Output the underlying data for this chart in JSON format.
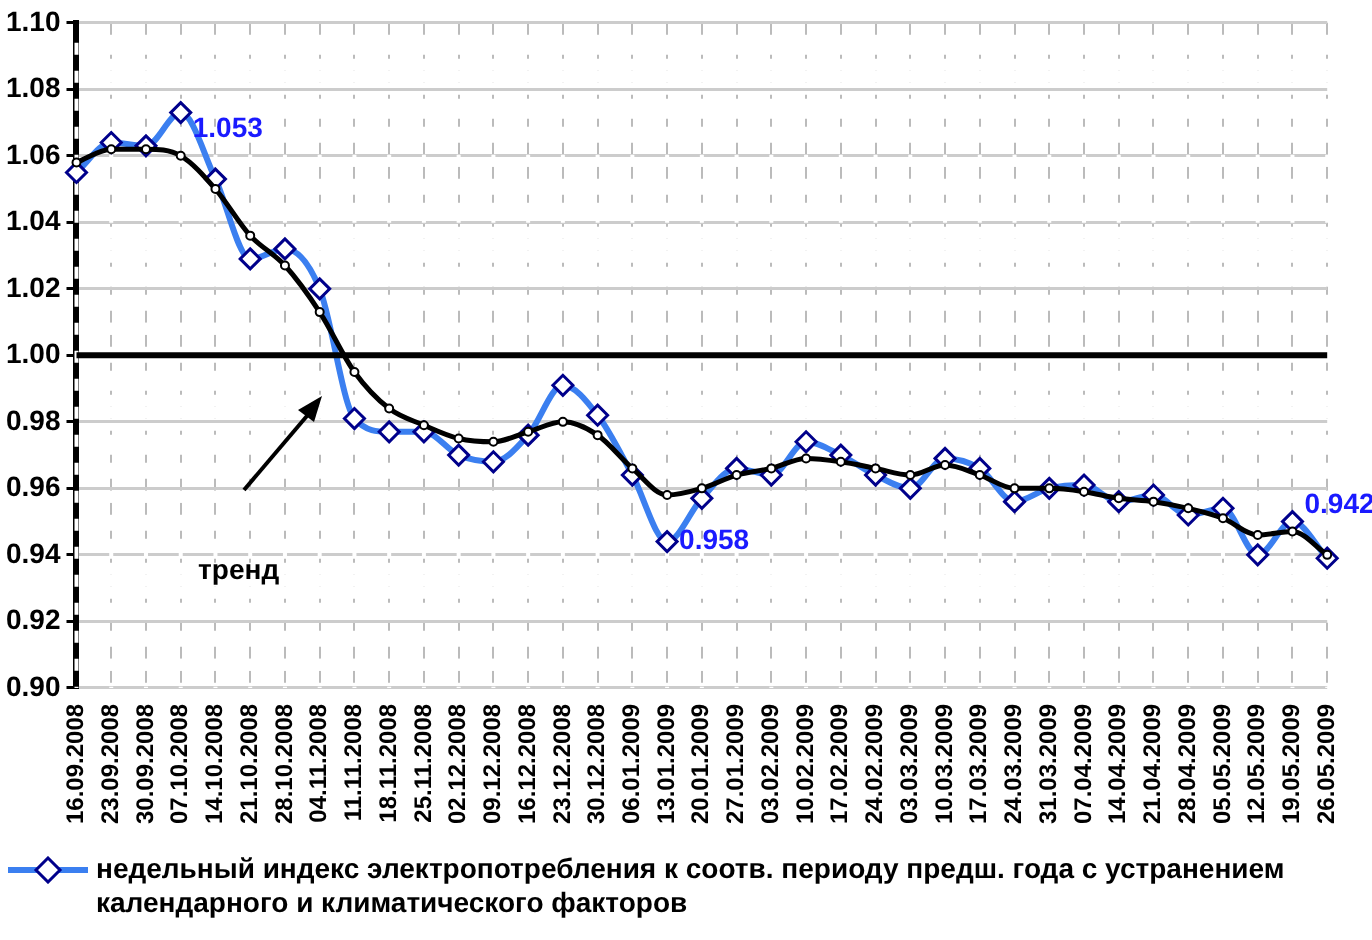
{
  "chart_data": {
    "type": "line",
    "categories": [
      "16.09.2008",
      "23.09.2008",
      "30.09.2008",
      "07.10.2008",
      "14.10.2008",
      "21.10.2008",
      "28.10.2008",
      "04.11.2008",
      "11.11.2008",
      "18.11.2008",
      "25.11.2008",
      "02.12.2008",
      "09.12.2008",
      "16.12.2008",
      "23.12.2008",
      "30.12.2008",
      "06.01.2009",
      "13.01.2009",
      "20.01.2009",
      "27.01.2009",
      "03.02.2009",
      "10.02.2009",
      "17.02.2009",
      "24.02.2009",
      "03.03.2009",
      "10.03.2009",
      "17.03.2009",
      "24.03.2009",
      "31.03.2009",
      "07.04.2009",
      "14.04.2009",
      "21.04.2009",
      "28.04.2009",
      "05.05.2009",
      "12.05.2009",
      "19.05.2009",
      "26.05.2009"
    ],
    "series": [
      {
        "name": "недельный индекс электропотребления к соотв. периоду предш. года с устранением календарного и климатического факторов",
        "color": "#3b7ff0",
        "marker": "diamond",
        "values": [
          1.055,
          1.064,
          1.063,
          1.073,
          1.053,
          1.029,
          1.032,
          1.02,
          0.981,
          0.977,
          0.977,
          0.97,
          0.968,
          0.976,
          0.991,
          0.982,
          0.964,
          0.944,
          0.957,
          0.966,
          0.964,
          0.974,
          0.97,
          0.964,
          0.96,
          0.969,
          0.966,
          0.956,
          0.96,
          0.961,
          0.956,
          0.958,
          0.952,
          0.954,
          0.94,
          0.95,
          0.939
        ]
      },
      {
        "color": "#000000",
        "marker": "circle",
        "values": [
          1.058,
          1.062,
          1.062,
          1.06,
          1.05,
          1.036,
          1.027,
          1.013,
          0.995,
          0.984,
          0.979,
          0.975,
          0.974,
          0.977,
          0.98,
          0.976,
          0.966,
          0.958,
          0.96,
          0.964,
          0.966,
          0.969,
          0.968,
          0.966,
          0.964,
          0.967,
          0.964,
          0.96,
          0.96,
          0.959,
          0.957,
          0.956,
          0.954,
          0.951,
          0.946,
          0.947,
          0.94
        ]
      }
    ],
    "ylim": [
      0.9,
      1.1
    ],
    "yticks": [
      {
        "value": 0.9,
        "label": "0.90"
      },
      {
        "value": 0.92,
        "label": "0.92"
      },
      {
        "value": 0.94,
        "label": "0.94"
      },
      {
        "value": 0.96,
        "label": "0.96"
      },
      {
        "value": 0.98,
        "label": "0.98"
      },
      {
        "value": 1.0,
        "label": "1.00"
      },
      {
        "value": 1.02,
        "label": "1.02"
      },
      {
        "value": 1.04,
        "label": "1.04"
      },
      {
        "value": 1.06,
        "label": "1.06"
      },
      {
        "value": 1.08,
        "label": "1.08"
      },
      {
        "value": 1.1,
        "label": "1.10"
      }
    ],
    "ref_lines": [
      {
        "axis": "y",
        "value": 1.0,
        "color": "#000000"
      }
    ],
    "annotations": [
      {
        "text": "1.053",
        "x": "07.10.2008",
        "y": 1.068
      },
      {
        "text": "0.958",
        "x": "13.01.2009",
        "y": 0.944
      },
      {
        "text": "0.942",
        "x": "19.05.2009",
        "y": 0.955
      },
      "тренд"
    ],
    "grid": true,
    "legend": "bottom"
  }
}
